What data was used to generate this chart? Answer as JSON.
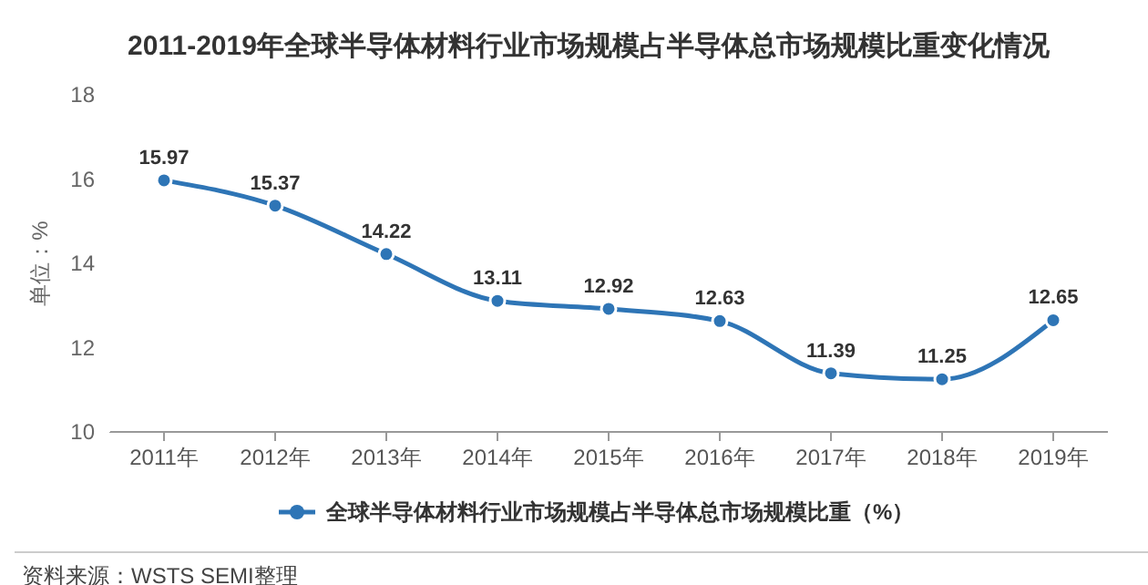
{
  "chart_data": {
    "type": "line",
    "title": "2011-2019年全球半导体材料行业市场规模占半导体总市场规模比重变化情况",
    "ylabel": "单位：%",
    "categories": [
      "2011年",
      "2012年",
      "2013年",
      "2014年",
      "2015年",
      "2016年",
      "2017年",
      "2018年",
      "2019年"
    ],
    "series": [
      {
        "name": "全球半导体材料行业市场规模占半导体总市场规模比重（%）",
        "color": "#2e75b6",
        "values": [
          15.97,
          15.37,
          14.22,
          13.11,
          12.92,
          12.63,
          11.39,
          11.25,
          12.65
        ]
      }
    ],
    "ylim": [
      10,
      18
    ],
    "yticks": [
      10,
      12,
      14,
      16,
      18
    ],
    "grid": false,
    "legend": "bottom",
    "marker": "circle",
    "line_style": "solid",
    "data_labels": true,
    "annotations": [
      "资料来源：WSTS SEMI整理"
    ]
  }
}
